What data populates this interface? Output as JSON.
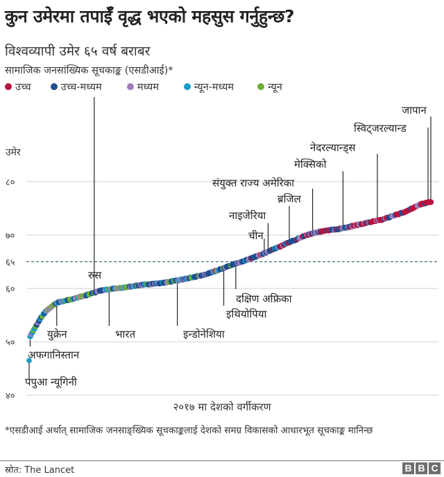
{
  "header": {
    "title": "कुन उमेरमा तपाईँ वृद्ध भएको महसुस गर्नुहुन्छ?",
    "subtitle": "विश्वव्यापी उमेर ६५ वर्ष बराबर",
    "subsubtitle": "सामाजिक जनसांख्यिक सूचकाङ्क (एसडीआई)*"
  },
  "legend": [
    {
      "label": "उच्च",
      "color": "#b9123f"
    },
    {
      "label": "उच्च-मध्यम",
      "color": "#1d4f91"
    },
    {
      "label": "मध्यम",
      "color": "#a07fb8"
    },
    {
      "label": "न्यून-मध्यम",
      "color": "#1b9bc6"
    },
    {
      "label": "न्यून",
      "color": "#6fb036"
    }
  ],
  "footer": {
    "xlabel": "२०१७ मा देशको वर्गीकरण",
    "footnote": "*एसडीआई अर्थात् सामाजिक जनसाङ्ख्यिक सूचकाङ्कलाई देशको समग्र विकासको आधारभूत सूचकाङ्क मानिन्छ",
    "source": "स्रोत: The Lancet",
    "logo": [
      "B",
      "B",
      "C"
    ]
  },
  "chart_data": {
    "type": "scatter",
    "title": "कुन उमेरमा तपाईँ वृद्ध भएको महसुस गर्नुहुन्छ?",
    "subtitle": "विश्वव्यापी उमेर ६५ वर्ष बराबर",
    "xlabel": "२०१७ मा देशको वर्गीकरण",
    "ylabel": "उमेर",
    "ylim": [
      40,
      85
    ],
    "yticks": [
      {
        "value": 40,
        "label": "४०"
      },
      {
        "value": 50,
        "label": "५०"
      },
      {
        "value": 60,
        "label": "६०"
      },
      {
        "value": 65,
        "label": "६५",
        "dashed": true
      },
      {
        "value": 70,
        "label": "७०"
      },
      {
        "value": 80,
        "label": "८०"
      }
    ],
    "reference_line": {
      "value": 65,
      "label": "विश्वव्यापी उमेर ६५ वर्ष बराबर"
    },
    "grid": true,
    "legend_position": "top",
    "series_key": [
      "उच्च",
      "उच्च-मध्यम",
      "मध्यम",
      "न्यून-मध्यम",
      "न्यून"
    ],
    "curve": [
      {
        "rank": 0,
        "age": 46.5
      },
      {
        "rank": 1,
        "age": 51.0
      },
      {
        "rank": 5,
        "age": 52.5
      },
      {
        "rank": 10,
        "age": 54.3
      },
      {
        "rank": 15,
        "age": 55.7
      },
      {
        "rank": 25,
        "age": 57.3
      },
      {
        "rank": 35,
        "age": 57.8
      },
      {
        "rank": 50,
        "age": 58.6
      },
      {
        "rank": 65,
        "age": 59.6
      },
      {
        "rank": 80,
        "age": 60.0
      },
      {
        "rank": 100,
        "age": 60.6
      },
      {
        "rank": 120,
        "age": 61.0
      },
      {
        "rank": 140,
        "age": 61.7
      },
      {
        "rank": 160,
        "age": 62.6
      },
      {
        "rank": 175,
        "age": 63.7
      },
      {
        "rank": 190,
        "age": 64.8
      },
      {
        "rank": 205,
        "age": 65.9
      },
      {
        "rank": 220,
        "age": 67.2
      },
      {
        "rank": 238,
        "age": 68.8
      },
      {
        "rank": 250,
        "age": 69.9
      },
      {
        "rank": 262,
        "age": 70.6
      },
      {
        "rank": 280,
        "age": 71.1
      },
      {
        "rank": 300,
        "age": 72.0
      },
      {
        "rank": 320,
        "age": 72.9
      },
      {
        "rank": 340,
        "age": 74.3
      },
      {
        "rank": 355,
        "age": 75.8
      },
      {
        "rank": 364,
        "age": 76.2
      }
    ],
    "annotations": [
      {
        "country": "पपुआ न्यूगिनी",
        "age": 46.5,
        "category": "न्यून-मध्यम"
      },
      {
        "country": "अफगानिस्तान",
        "age": 50.8,
        "category": "मध्यम"
      },
      {
        "country": "युक्रेन",
        "age": 57.3,
        "category": "उच्च-मध्यम"
      },
      {
        "country": "रुस",
        "age": 59.2,
        "category": "उच्च-मध्यम"
      },
      {
        "country": "भारत",
        "age": 59.8,
        "category": "उच्च-मध्यम"
      },
      {
        "country": "इन्डोनेशिया",
        "age": 61.5,
        "category": "मध्यम"
      },
      {
        "country": "इथियोपिया",
        "age": 63.8,
        "category": "न्यून"
      },
      {
        "country": "दक्षिण अफ्रिका",
        "age": 64.6,
        "category": "मध्यम"
      },
      {
        "country": "चीन",
        "age": 66.7,
        "category": "उच्च-मध्यम"
      },
      {
        "country": "नाइजेरिया",
        "age": 66.8,
        "category": "न्यून-मध्यम"
      },
      {
        "country": "ब्रजिल",
        "age": 68.6,
        "category": "मध्यम"
      },
      {
        "country": "संयुक्त राज्य अमेरिका",
        "age": 70.3,
        "category": "उच्च"
      },
      {
        "country": "मेक्सिको",
        "age": 71.3,
        "category": "उच्च-मध्यम"
      },
      {
        "country": "नेदरल्यान्ड्स",
        "age": 72.7,
        "category": "उच्च"
      },
      {
        "country": "स्विट्जरल्यान्ड",
        "age": 76.0,
        "category": "उच्च"
      },
      {
        "country": "जापान",
        "age": 76.2,
        "category": "उच्च"
      }
    ]
  }
}
